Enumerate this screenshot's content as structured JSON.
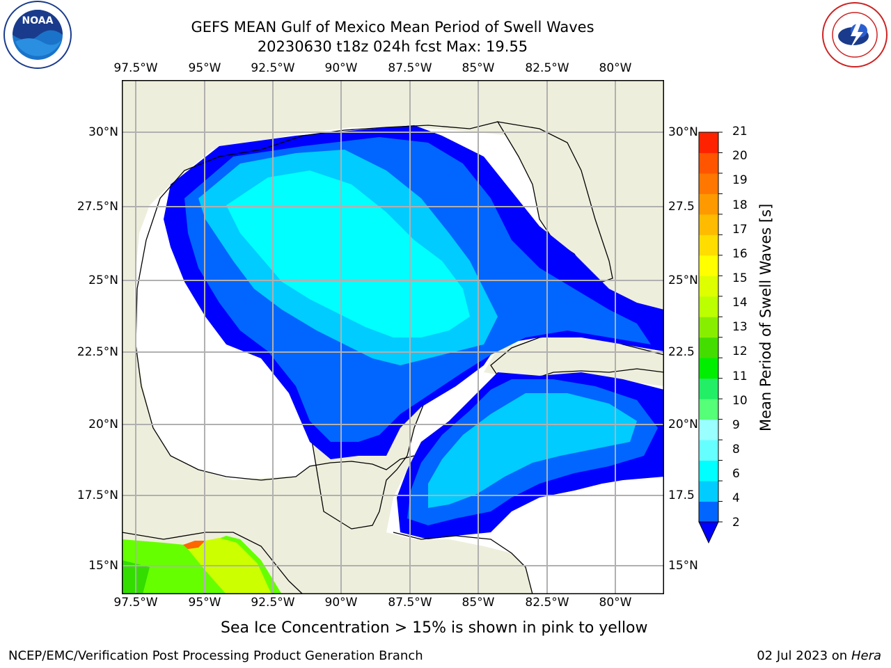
{
  "title": {
    "line1": "GEFS MEAN Gulf of Mexico Mean Period of Swell Waves",
    "line2": "20230630 t18z 024h fcst   Max: 19.55"
  },
  "logos": {
    "left": {
      "text": "NOAA",
      "ring_text": "NATIONAL OCEANIC AND ATMOSPHERIC ADMINISTRATION · U.S. DEPARTMENT OF COMMERCE"
    },
    "right": {
      "ring_text": "NATIONAL WEATHER SERVICE"
    }
  },
  "map": {
    "lon_ticks_top": [
      "97.5°W",
      "95°W",
      "92.5°W",
      "90°W",
      "87.5°W",
      "85°W",
      "82.5°W",
      "80°W"
    ],
    "lon_ticks_bottom": [
      "97.5°W",
      "95°W",
      "92.5°W",
      "90°W",
      "87.5°W",
      "85°W",
      "82.5°W",
      "80°W"
    ],
    "lat_ticks_left": [
      "30°N",
      "27.5°N",
      "25°N",
      "22.5°N",
      "20°N",
      "17.5°N",
      "15°N"
    ],
    "lat_ticks_right": [
      "30°N",
      "27.5",
      "25°N",
      "22.5",
      "20°N",
      "17.5",
      "15°N"
    ],
    "land_color": "#eeeedc",
    "water_nodata_color": "#ffffff",
    "gridline_color": "#b0b0b0",
    "max_value": 19.55
  },
  "colorbar": {
    "title": "Mean Period of Swell Waves [s]",
    "levels": [
      "2",
      "4",
      "6",
      "8",
      "9",
      "10",
      "11",
      "12",
      "13",
      "14",
      "15",
      "16",
      "17",
      "18",
      "19",
      "20",
      "21"
    ],
    "colors": [
      "#0000ff",
      "#0066ff",
      "#00ccff",
      "#00ffff",
      "#66ffff",
      "#99ffff",
      "#33ff66",
      "#00ff00",
      "#33ee00",
      "#66ff00",
      "#aaff00",
      "#ccff00",
      "#eeff00",
      "#ffff00",
      "#ffee00",
      "#ffcc00",
      "#ffaa00",
      "#ff8800",
      "#ff6600",
      "#ff3300",
      "#ff0000"
    ],
    "under_color": "#0000ff"
  },
  "caption": "Sea Ice Concentration > 15% is shown in pink to yellow",
  "footer": {
    "left": "NCEP/EMC/Verification Post Processing Product Generation Branch",
    "right_date": "02 Jul 2023 on",
    "right_host": "Hera"
  }
}
